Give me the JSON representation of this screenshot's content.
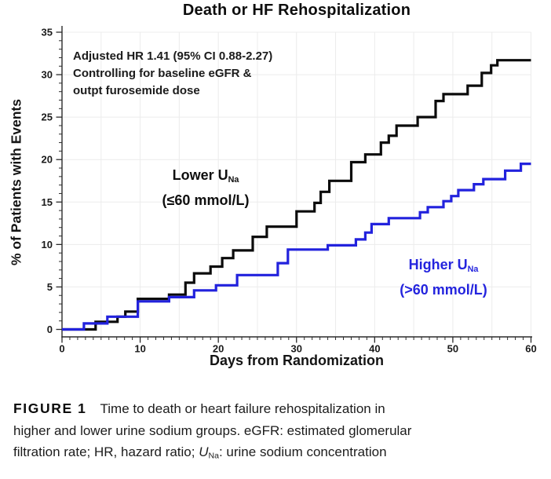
{
  "figure": {
    "title": "Death or HF Rehospitalization",
    "xlabel": "Days from Randomization",
    "ylabel": "% of Patients with Events",
    "annotation_lines": [
      "Adjusted HR 1.41 (95% CI 0.88-2.27)",
      "Controlling for baseline eGFR &",
      "outpt furosemide dose"
    ]
  },
  "series_labels": {
    "lower": {
      "main": "Lower U",
      "sub": "Na",
      "range": "(≤60 mmol/L)",
      "color": "#0f0f0f"
    },
    "higher": {
      "main": "Higher U",
      "sub": "Na",
      "range": "(>60 mmol/L)",
      "color": "#2424DE"
    }
  },
  "caption": {
    "lines": [
      {
        "label": "FIGURE 1",
        "text": "Time to death or heart failure rehospitalization in"
      },
      {
        "text": "higher and lower urine sodium groups. eGFR: estimated glomerular"
      },
      {
        "pre": "filtration rate; HR, hazard ratio; ",
        "u": "U",
        "sub": "Na",
        "post": ": urine sodium concentration"
      }
    ]
  },
  "chart_data": {
    "type": "line",
    "subtype": "kaplan-meier-step",
    "title": "Death or HF Rehospitalization",
    "xlabel": "Days from Randomization",
    "ylabel": "% of Patients with Events",
    "xlim": [
      0,
      60
    ],
    "ylim": [
      0,
      35
    ],
    "x_major_tick": 10,
    "x_minor_tick": 1,
    "y_major_tick": 5,
    "y_minor_tick": 1,
    "grid": {
      "x_step": 5,
      "y_step": 5,
      "color": "#ececec"
    },
    "legend_position": "inline-text-labels",
    "annotation": "Adjusted HR 1.41 (95% CI 0.88-2.27); Controlling for baseline eGFR & outpt furosemide dose",
    "series": [
      {
        "name": "Lower UNa (≤60 mmol/L)",
        "slug": "lower-una-curve",
        "color": "#0b0b0b",
        "step_points_day_percent": [
          [
            0,
            0
          ],
          [
            4.3,
            0.9
          ],
          [
            7.1,
            1.5
          ],
          [
            8.1,
            2.1
          ],
          [
            9.7,
            3.6
          ],
          [
            13.7,
            4.1
          ],
          [
            15.8,
            5.5
          ],
          [
            16.9,
            6.6
          ],
          [
            19,
            7.4
          ],
          [
            20.5,
            8.4
          ],
          [
            21.9,
            9.3
          ],
          [
            24.4,
            10.9
          ],
          [
            26.2,
            12.1
          ],
          [
            30,
            13.9
          ],
          [
            32.3,
            14.9
          ],
          [
            33.1,
            16.2
          ],
          [
            34.2,
            17.5
          ],
          [
            37,
            19.7
          ],
          [
            38.8,
            20.6
          ],
          [
            40.8,
            22
          ],
          [
            41.8,
            22.8
          ],
          [
            42.8,
            24
          ],
          [
            45.5,
            25
          ],
          [
            47.8,
            26.9
          ],
          [
            48.8,
            27.7
          ],
          [
            51.9,
            28.7
          ],
          [
            53.7,
            30.2
          ],
          [
            54.9,
            31.1
          ],
          [
            55.7,
            31.7
          ],
          [
            60,
            31.7
          ]
        ]
      },
      {
        "name": "Higher UNa (>60 mmol/L)",
        "slug": "higher-una-curve",
        "color": "#2222DD",
        "step_points_day_percent": [
          [
            0,
            0
          ],
          [
            2.8,
            0.7
          ],
          [
            5.8,
            1.5
          ],
          [
            9.7,
            3.3
          ],
          [
            13.7,
            3.8
          ],
          [
            16.9,
            4.6
          ],
          [
            19.7,
            5.2
          ],
          [
            22.4,
            6.4
          ],
          [
            27.6,
            7.8
          ],
          [
            28.9,
            9.4
          ],
          [
            34,
            9.9
          ],
          [
            37.6,
            10.6
          ],
          [
            38.8,
            11.4
          ],
          [
            39.6,
            12.4
          ],
          [
            41.8,
            13.1
          ],
          [
            45.8,
            13.8
          ],
          [
            46.8,
            14.4
          ],
          [
            48.8,
            15.1
          ],
          [
            49.8,
            15.7
          ],
          [
            50.7,
            16.4
          ],
          [
            52.7,
            17.1
          ],
          [
            53.9,
            17.7
          ],
          [
            56.7,
            18.7
          ],
          [
            58.7,
            19.5
          ],
          [
            60,
            19.5
          ]
        ]
      }
    ]
  }
}
